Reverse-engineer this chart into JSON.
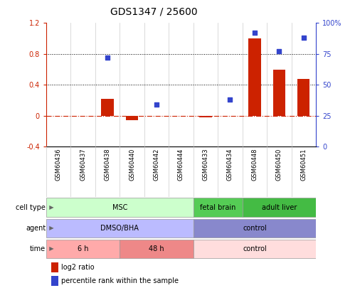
{
  "title": "GDS1347 / 25600",
  "samples": [
    "GSM60436",
    "GSM60437",
    "GSM60438",
    "GSM60440",
    "GSM60442",
    "GSM60444",
    "GSM60433",
    "GSM60434",
    "GSM60448",
    "GSM60450",
    "GSM60451"
  ],
  "log2_ratio": [
    null,
    null,
    0.22,
    -0.06,
    null,
    null,
    -0.02,
    null,
    1.0,
    0.6,
    0.48
  ],
  "percentile_rank": [
    null,
    null,
    72,
    null,
    34,
    null,
    null,
    38,
    92,
    77,
    88
  ],
  "ylim_left": [
    -0.4,
    1.2
  ],
  "ylim_right": [
    0,
    100
  ],
  "yticks_left": [
    -0.4,
    0.0,
    0.4,
    0.8,
    1.2
  ],
  "ytick_labels_left": [
    "-0.4",
    "0",
    "0.4",
    "0.8",
    "1.2"
  ],
  "yticks_right": [
    0,
    25,
    50,
    75,
    100
  ],
  "ytick_labels_right": [
    "0",
    "25",
    "50",
    "75",
    "100%"
  ],
  "hlines": [
    0.4,
    0.8
  ],
  "zero_line": 0.0,
  "bar_color": "#cc2200",
  "scatter_color": "#3344cc",
  "cell_type_groups": [
    {
      "label": "MSC",
      "start": 0,
      "end": 5,
      "color": "#ccffcc"
    },
    {
      "label": "fetal brain",
      "start": 6,
      "end": 7,
      "color": "#55cc55"
    },
    {
      "label": "adult liver",
      "start": 8,
      "end": 10,
      "color": "#44bb44"
    }
  ],
  "agent_groups": [
    {
      "label": "DMSO/BHA",
      "start": 0,
      "end": 5,
      "color": "#bbbbff"
    },
    {
      "label": "control",
      "start": 6,
      "end": 10,
      "color": "#8888cc"
    }
  ],
  "time_groups": [
    {
      "label": "6 h",
      "start": 0,
      "end": 2,
      "color": "#ffaaaa"
    },
    {
      "label": "48 h",
      "start": 3,
      "end": 5,
      "color": "#ee8888"
    },
    {
      "label": "control",
      "start": 6,
      "end": 10,
      "color": "#ffdddd"
    }
  ],
  "row_labels": [
    "cell type",
    "agent",
    "time"
  ],
  "legend_red_label": "log2 ratio",
  "legend_blue_label": "percentile rank within the sample",
  "legend_red_color": "#cc2200",
  "legend_blue_color": "#3344cc",
  "background_color": "#ffffff"
}
